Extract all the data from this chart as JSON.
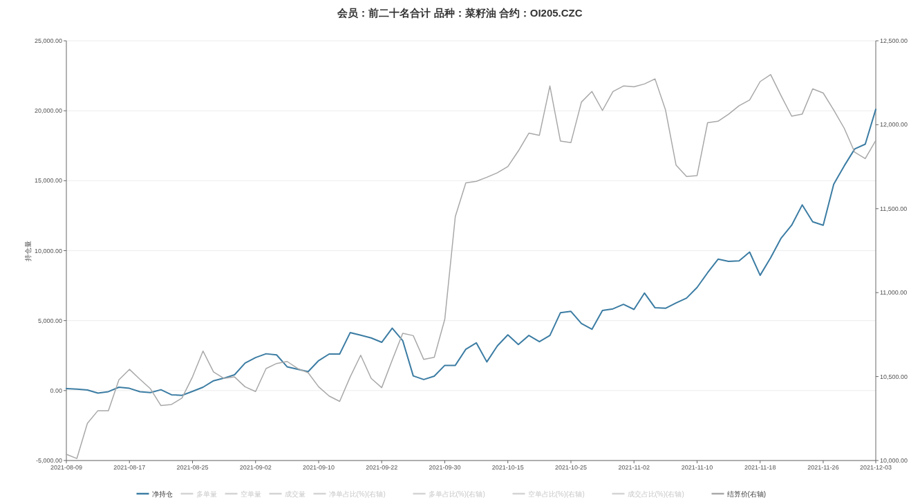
{
  "chart_data": {
    "type": "line",
    "title": "会员：前二十名合计 品种：菜籽油 合约：OI205.CZC",
    "ylabel": "持仓量",
    "categories": [
      "2021-08-09",
      null,
      null,
      null,
      null,
      null,
      "2021-08-17",
      null,
      null,
      null,
      null,
      null,
      "2021-08-25",
      null,
      null,
      null,
      null,
      null,
      "2021-09-02",
      null,
      null,
      null,
      null,
      null,
      "2021-09-10",
      null,
      null,
      null,
      null,
      null,
      "2021-09-22",
      null,
      null,
      null,
      null,
      null,
      "2021-09-30",
      null,
      null,
      null,
      null,
      null,
      "2021-10-15",
      null,
      null,
      null,
      null,
      null,
      "2021-10-25",
      null,
      null,
      null,
      null,
      null,
      "2021-11-02",
      null,
      null,
      null,
      null,
      null,
      "2021-11-10",
      null,
      null,
      null,
      null,
      null,
      "2021-11-18",
      null,
      null,
      null,
      null,
      null,
      "2021-11-26",
      null,
      null,
      null,
      null,
      "2021-12-03"
    ],
    "series": [
      {
        "name": "净持仓",
        "color": "#3b7ca3",
        "values": [
          140,
          100,
          40,
          -180,
          -80,
          240,
          160,
          -80,
          -140,
          60,
          -300,
          -340,
          -60,
          240,
          700,
          890,
          1130,
          1960,
          2360,
          2630,
          2550,
          1700,
          1520,
          1350,
          2140,
          2610,
          2610,
          4140,
          3960,
          3760,
          3450,
          4460,
          3570,
          1050,
          790,
          1030,
          1800,
          1800,
          2950,
          3410,
          2050,
          3190,
          3980,
          3290,
          3940,
          3490,
          3940,
          5560,
          5660,
          4790,
          4380,
          5720,
          5840,
          6160,
          5800,
          6970,
          5920,
          5880,
          6260,
          6610,
          7370,
          8420,
          9390,
          9230,
          9270,
          9900,
          8240,
          9490,
          10900,
          11820,
          13270,
          12060,
          11820,
          14750,
          16060,
          17270,
          17610,
          20100
        ]
      },
      {
        "name": "多单量",
        "color": "#d3d3d3",
        "values": [
          null,
          null,
          null,
          null,
          null,
          null,
          null,
          null,
          null,
          null,
          null,
          null,
          null,
          null,
          null,
          null,
          null,
          null,
          null,
          null,
          null,
          null,
          null,
          null,
          null,
          null,
          null,
          null,
          null,
          null,
          null,
          null,
          null,
          null,
          null,
          null,
          null,
          null,
          null,
          null,
          null,
          null,
          null,
          null,
          null,
          null,
          null,
          null,
          null,
          null,
          null,
          null,
          null,
          null,
          null,
          null,
          null,
          null,
          null,
          null,
          null,
          null,
          null,
          null,
          null,
          null,
          null,
          null,
          null,
          null,
          null,
          null,
          null,
          null,
          null,
          null,
          null,
          null
        ]
      },
      {
        "name": "空单量",
        "color": "#d3d3d3",
        "values": [
          null,
          null,
          null,
          null,
          null,
          null,
          null,
          null,
          null,
          null,
          null,
          null,
          null,
          null,
          null,
          null,
          null,
          null,
          null,
          null,
          null,
          null,
          null,
          null,
          null,
          null,
          null,
          null,
          null,
          null,
          null,
          null,
          null,
          null,
          null,
          null,
          null,
          null,
          null,
          null,
          null,
          null,
          null,
          null,
          null,
          null,
          null,
          null,
          null,
          null,
          null,
          null,
          null,
          null,
          null,
          null,
          null,
          null,
          null,
          null,
          null,
          null,
          null,
          null,
          null,
          null,
          null,
          null,
          null,
          null,
          null,
          null,
          null,
          null,
          null,
          null,
          null,
          null
        ]
      },
      {
        "name": "成交量",
        "color": "#d3d3d3",
        "values": [
          null,
          null,
          null,
          null,
          null,
          null,
          null,
          null,
          null,
          null,
          null,
          null,
          null,
          null,
          null,
          null,
          null,
          null,
          null,
          null,
          null,
          null,
          null,
          null,
          null,
          null,
          null,
          null,
          null,
          null,
          null,
          null,
          null,
          null,
          null,
          null,
          null,
          null,
          null,
          null,
          null,
          null,
          null,
          null,
          null,
          null,
          null,
          null,
          null,
          null,
          null,
          null,
          null,
          null,
          null,
          null,
          null,
          null,
          null,
          null,
          null,
          null,
          null,
          null,
          null,
          null,
          null,
          null,
          null,
          null,
          null,
          null,
          null,
          null,
          null,
          null,
          null,
          null
        ]
      },
      {
        "name": "净单占比(%)(右轴)",
        "color": "#d3d3d3",
        "axis": "y2",
        "values": [
          null,
          null,
          null,
          null,
          null,
          null,
          null,
          null,
          null,
          null,
          null,
          null,
          null,
          null,
          null,
          null,
          null,
          null,
          null,
          null,
          null,
          null,
          null,
          null,
          null,
          null,
          null,
          null,
          null,
          null,
          null,
          null,
          null,
          null,
          null,
          null,
          null,
          null,
          null,
          null,
          null,
          null,
          null,
          null,
          null,
          null,
          null,
          null,
          null,
          null,
          null,
          null,
          null,
          null,
          null,
          null,
          null,
          null,
          null,
          null,
          null,
          null,
          null,
          null,
          null,
          null,
          null,
          null,
          null,
          null,
          null,
          null,
          null,
          null,
          null,
          null,
          null,
          null
        ]
      },
      {
        "name": "多单占比(%)(右轴)",
        "color": "#d3d3d3",
        "axis": "y2",
        "values": [
          null,
          null,
          null,
          null,
          null,
          null,
          null,
          null,
          null,
          null,
          null,
          null,
          null,
          null,
          null,
          null,
          null,
          null,
          null,
          null,
          null,
          null,
          null,
          null,
          null,
          null,
          null,
          null,
          null,
          null,
          null,
          null,
          null,
          null,
          null,
          null,
          null,
          null,
          null,
          null,
          null,
          null,
          null,
          null,
          null,
          null,
          null,
          null,
          null,
          null,
          null,
          null,
          null,
          null,
          null,
          null,
          null,
          null,
          null,
          null,
          null,
          null,
          null,
          null,
          null,
          null,
          null,
          null,
          null,
          null,
          null,
          null,
          null,
          null,
          null,
          null,
          null,
          null
        ]
      },
      {
        "name": "空单占比(%)(右轴)",
        "color": "#d3d3d3",
        "axis": "y2",
        "values": [
          null,
          null,
          null,
          null,
          null,
          null,
          null,
          null,
          null,
          null,
          null,
          null,
          null,
          null,
          null,
          null,
          null,
          null,
          null,
          null,
          null,
          null,
          null,
          null,
          null,
          null,
          null,
          null,
          null,
          null,
          null,
          null,
          null,
          null,
          null,
          null,
          null,
          null,
          null,
          null,
          null,
          null,
          null,
          null,
          null,
          null,
          null,
          null,
          null,
          null,
          null,
          null,
          null,
          null,
          null,
          null,
          null,
          null,
          null,
          null,
          null,
          null,
          null,
          null,
          null,
          null,
          null,
          null,
          null,
          null,
          null,
          null,
          null,
          null,
          null,
          null,
          null,
          null
        ]
      },
      {
        "name": "成交占比(%)(右轴)",
        "color": "#d3d3d3",
        "axis": "y2",
        "values": [
          null,
          null,
          null,
          null,
          null,
          null,
          null,
          null,
          null,
          null,
          null,
          null,
          null,
          null,
          null,
          null,
          null,
          null,
          null,
          null,
          null,
          null,
          null,
          null,
          null,
          null,
          null,
          null,
          null,
          null,
          null,
          null,
          null,
          null,
          null,
          null,
          null,
          null,
          null,
          null,
          null,
          null,
          null,
          null,
          null,
          null,
          null,
          null,
          null,
          null,
          null,
          null,
          null,
          null,
          null,
          null,
          null,
          null,
          null,
          null,
          null,
          null,
          null,
          null,
          null,
          null,
          null,
          null,
          null,
          null,
          null,
          null,
          null,
          null,
          null,
          null,
          null,
          null
        ]
      },
      {
        "name": "结算价(右轴)",
        "color": "#a8a8a8",
        "axis": "y2",
        "values": [
          10037,
          10012,
          10221,
          10297,
          10297,
          10481,
          10543,
          10484,
          10427,
          10327,
          10334,
          10372,
          10498,
          10652,
          10528,
          10489,
          10498,
          10439,
          10411,
          10548,
          10578,
          10590,
          10548,
          10523,
          10439,
          10384,
          10352,
          10498,
          10627,
          10489,
          10434,
          10598,
          10758,
          10744,
          10602,
          10615,
          10841,
          11453,
          11654,
          11663,
          11687,
          11714,
          11751,
          11844,
          11950,
          11937,
          12231,
          11903,
          11894,
          12135,
          12198,
          12085,
          12198,
          12231,
          12226,
          12243,
          12273,
          12088,
          11760,
          11692,
          11697,
          12012,
          12021,
          12063,
          12113,
          12147,
          12257,
          12299,
          12172,
          12051,
          12063,
          12214,
          12189,
          12088,
          11979,
          11836,
          11798,
          11906
        ]
      }
    ],
    "ylim": [
      -5000,
      25000
    ],
    "yticks": [
      {
        "value": -5000,
        "label": "-5,000.00"
      },
      {
        "value": 0,
        "label": "0.00"
      },
      {
        "value": 5000,
        "label": "5,000.00"
      },
      {
        "value": 10000,
        "label": "10,000.00"
      },
      {
        "value": 15000,
        "label": "15,000.00"
      },
      {
        "value": 20000,
        "label": "20,000.00"
      },
      {
        "value": 25000,
        "label": "25,000.00"
      }
    ],
    "y2lim": [
      10000,
      12500
    ],
    "y2ticks": [
      {
        "value": 10000,
        "label": "10,000.00"
      },
      {
        "value": 10500,
        "label": "10,500.00"
      },
      {
        "value": 11000,
        "label": "11,000.00"
      },
      {
        "value": 11500,
        "label": "11,500.00"
      },
      {
        "value": 12000,
        "label": "12,000.00"
      },
      {
        "value": 12500,
        "label": "12,500.00"
      }
    ],
    "grid": "y",
    "legend": "bottom",
    "marker": "none",
    "line_style": "solid"
  }
}
